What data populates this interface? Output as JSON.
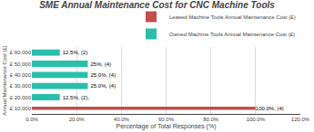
{
  "chart_data": {
    "type": "bar",
    "orientation": "horizontal",
    "title": "SME Annual Maintenance Cost for CNC Machine Tools",
    "xlabel": "Percentage of Total Responses (%)",
    "ylabel": "Annual Maintenance Cost (£)",
    "categories": [
      "£ 60,000",
      "£ 50,000",
      "£ 40,000",
      "£ 30,000",
      "£ 20,000",
      "£ 10,000"
    ],
    "series": [
      {
        "name": "Owned Machine Tools Annual Maintenance Cost (£)",
        "color": "#2ABFAA",
        "values": [
          12.5,
          25.0,
          25.0,
          25.0,
          12.5,
          0.0
        ],
        "value_labels": [
          "12.5%, (2)",
          "25%, (4)",
          "25.0%, (4)",
          "25.0%, (4)",
          "12.5%, (2),",
          null
        ]
      },
      {
        "name": "Leased Machine Tools Annual Maintenance Cost (£)",
        "color": "#C0504D",
        "values": [
          0.0,
          0.0,
          0.0,
          0.0,
          0.0,
          100.0
        ],
        "value_labels": [
          null,
          null,
          null,
          null,
          null,
          "100.0%, (4)"
        ]
      }
    ],
    "xlim": [
      0,
      120
    ],
    "xticks": [
      {
        "value": 0,
        "label": "0.0%"
      },
      {
        "value": 20,
        "label": "20.0%"
      },
      {
        "value": 40,
        "label": "40.0%"
      },
      {
        "value": 60,
        "label": "60.0%"
      },
      {
        "value": 80,
        "label": "80.0%"
      },
      {
        "value": 100,
        "label": "100.0%"
      },
      {
        "value": 120,
        "label": "120.0%"
      }
    ],
    "grid": true,
    "legend": "upper right",
    "data_labels": true
  }
}
